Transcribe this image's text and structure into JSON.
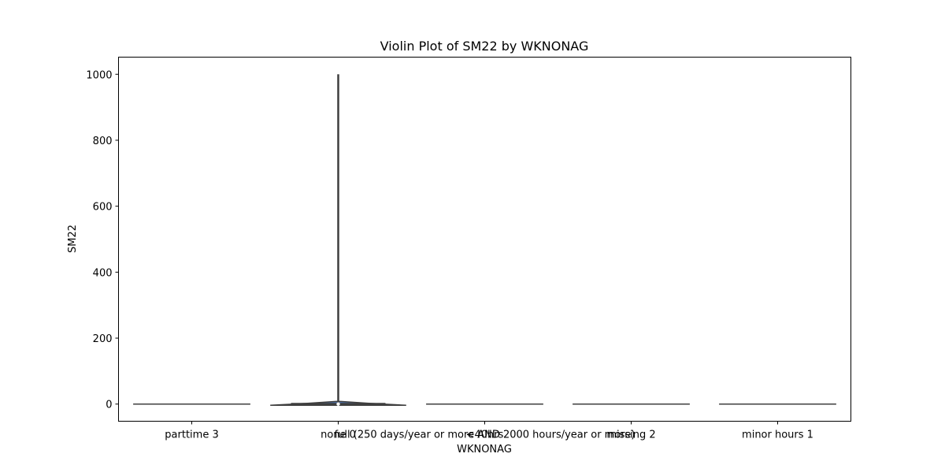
{
  "chart_data": {
    "type": "violin",
    "title": "Violin Plot of SM22 by WKNONAG",
    "xlabel": "WKNONAG",
    "ylabel": "SM22",
    "categories": [
      "parttime 3",
      "none 0",
      "<40hrs",
      "full (250 days/year or more AND 2000 hours/year or more)",
      "missing 2",
      "minor hours 1"
    ],
    "category_slots": [
      0,
      1,
      2,
      2,
      3,
      4
    ],
    "yticks": [
      0,
      200,
      400,
      600,
      800,
      1000
    ],
    "ylim": [
      -52,
      1052
    ],
    "grid": false,
    "violins": [
      {
        "category": "parttime 3",
        "min": 0,
        "max": 0,
        "median": 0
      },
      {
        "category": "none 0",
        "min": 0,
        "max": 1000,
        "median": 0,
        "bulk_max": 8
      },
      {
        "category": "<40hrs",
        "min": 0,
        "max": 0,
        "median": 0
      },
      {
        "category": "missing 2",
        "min": 0,
        "max": 0,
        "median": 0
      },
      {
        "category": "minor hours 1",
        "min": 0,
        "max": 0,
        "median": 0
      }
    ],
    "colors": {
      "violin_fill": "#4c72b0",
      "violin_edge": "#3f3f3f",
      "axis": "#000000"
    }
  }
}
